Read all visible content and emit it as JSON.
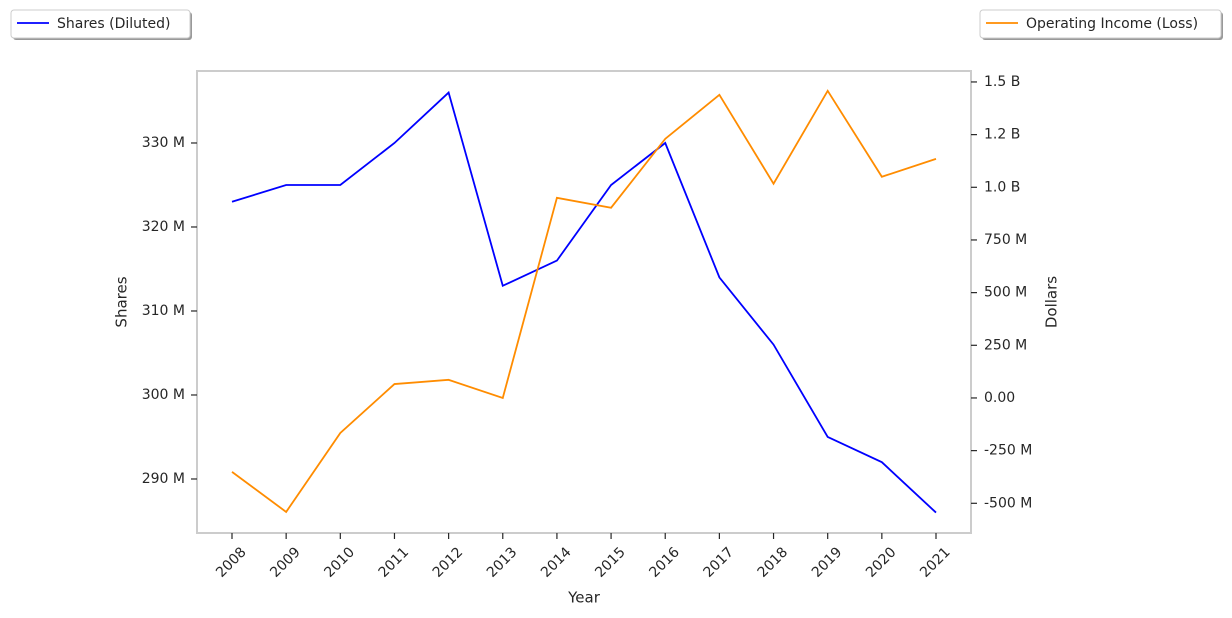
{
  "chart_data": {
    "type": "line",
    "x_label": "Year",
    "y_label": "Shares",
    "y2_label": "Dollars",
    "categories": [
      "2008",
      "2009",
      "2010",
      "2011",
      "2012",
      "2013",
      "2014",
      "2015",
      "2016",
      "2017",
      "2018",
      "2019",
      "2020",
      "2021"
    ],
    "series": [
      {
        "name": "Shares (Diluted)",
        "color": "#0000ff",
        "axis": "y",
        "values": [
          323000000,
          325000000,
          325000000,
          330000000,
          336000000,
          313000000,
          316000000,
          325000000,
          330000000,
          314000000,
          306000000,
          295000000,
          292000000,
          286000000
        ]
      },
      {
        "name": "Operating Income (Loss)",
        "color": "#ff8c00",
        "axis": "y2",
        "values": [
          -351000000,
          -541000000,
          -166000000,
          66000000,
          86000000,
          0,
          950000000,
          903000000,
          1230000000,
          1439000000,
          1017000000,
          1458000000,
          1050000000,
          1135000000
        ]
      }
    ],
    "ylim": [
      283570000,
      338570000
    ],
    "yticks": [
      {
        "value": 290000000,
        "label": "290 M"
      },
      {
        "value": 300000000,
        "label": "300 M"
      },
      {
        "value": 310000000,
        "label": "310 M"
      },
      {
        "value": 320000000,
        "label": "320 M"
      },
      {
        "value": 330000000,
        "label": "330 M"
      }
    ],
    "y2lim": [
      -641000000,
      1552000000
    ],
    "y2ticks": [
      {
        "value": -500000000,
        "label": "-500 M"
      },
      {
        "value": -250000000,
        "label": "-250 M"
      },
      {
        "value": 0,
        "label": "0.00"
      },
      {
        "value": 250000000,
        "label": "250 M"
      },
      {
        "value": 500000000,
        "label": "500 M"
      },
      {
        "value": 750000000,
        "label": "750 M"
      },
      {
        "value": 1000000000,
        "label": "1.0 B"
      },
      {
        "value": 1250000000,
        "label": "1.2 B"
      },
      {
        "value": 1500000000,
        "label": "1.5 B"
      }
    ]
  }
}
